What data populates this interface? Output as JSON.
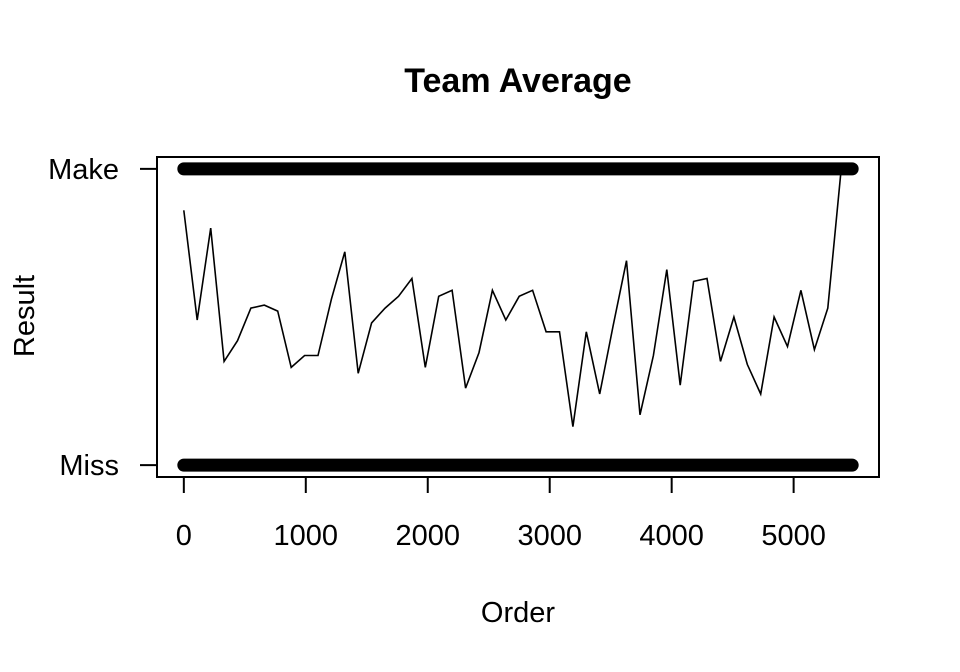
{
  "chart_data": {
    "type": "line",
    "title": "Team Average",
    "xlabel": "Order",
    "ylabel": "Result",
    "xlim": [
      -220,
      5700
    ],
    "ylim": [
      -0.04,
      1.04
    ],
    "x_ticks": [
      0,
      1000,
      2000,
      3000,
      4000,
      5000
    ],
    "y_ticks": [
      {
        "value": 0,
        "label": "Miss"
      },
      {
        "value": 1,
        "label": "Make"
      }
    ],
    "grid": false,
    "legend": "none",
    "points_series": {
      "x_range": [
        0,
        5480
      ],
      "y_values": [
        0,
        1
      ],
      "description_marks": "dense points at Make and Miss"
    },
    "series": [
      {
        "x": [
          0,
          110,
          220,
          330,
          440,
          550,
          660,
          770,
          880,
          990,
          1100,
          1210,
          1320,
          1430,
          1540,
          1650,
          1760,
          1870,
          1980,
          2090,
          2200,
          2310,
          2420,
          2530,
          2640,
          2750,
          2860,
          2970,
          3080,
          3190,
          3300,
          3410,
          3520,
          3630,
          3740,
          3850,
          3960,
          4070,
          4180,
          4290,
          4400,
          4510,
          4620,
          4730,
          4840,
          4950,
          5060,
          5170,
          5280,
          5390,
          5480
        ],
        "values": [
          0.86,
          0.49,
          0.8,
          0.35,
          0.42,
          0.53,
          0.54,
          0.52,
          0.33,
          0.37,
          0.37,
          0.56,
          0.72,
          0.31,
          0.48,
          0.53,
          0.57,
          0.63,
          0.33,
          0.57,
          0.59,
          0.26,
          0.38,
          0.59,
          0.49,
          0.57,
          0.59,
          0.45,
          0.45,
          0.13,
          0.45,
          0.24,
          0.47,
          0.69,
          0.17,
          0.37,
          0.66,
          0.27,
          0.62,
          0.63,
          0.35,
          0.5,
          0.34,
          0.24,
          0.5,
          0.4,
          0.59,
          0.39,
          0.53,
          1.0,
          1.0
        ]
      }
    ]
  }
}
